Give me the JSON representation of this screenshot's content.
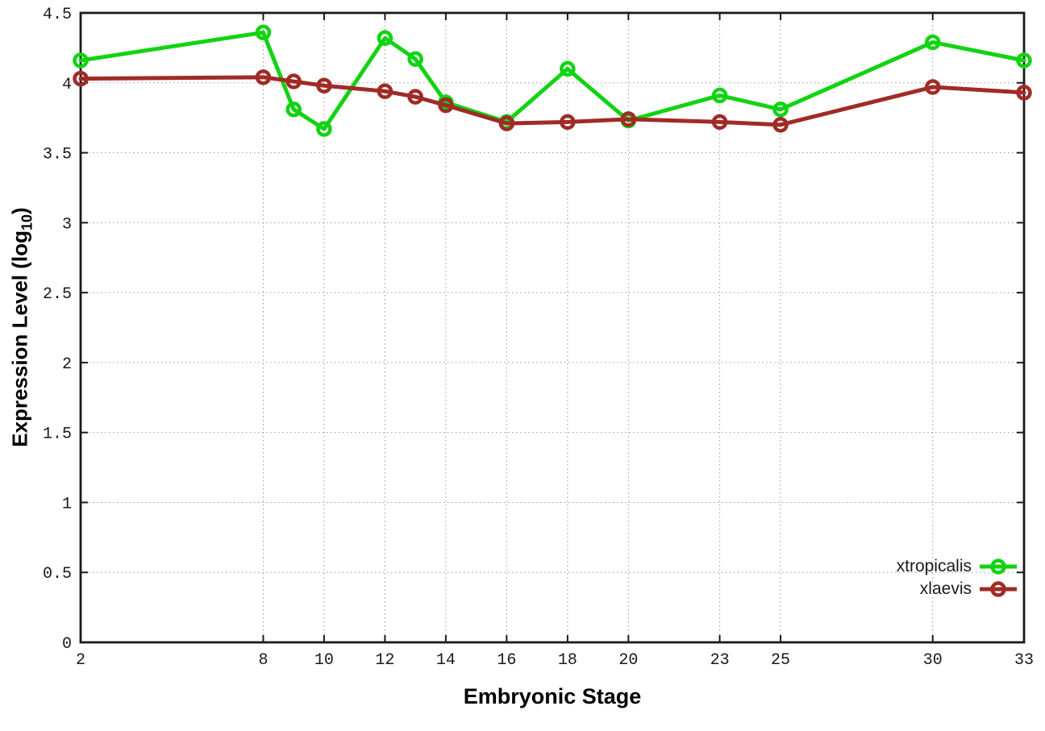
{
  "chart_data": {
    "type": "line",
    "title": "",
    "xlabel": "Embryonic Stage",
    "ylabel": "Expression Level (log10)",
    "ylabel_parts": {
      "main": "Expression Level (log",
      "sub": "10",
      "end": ")"
    },
    "x": [
      2,
      8,
      9,
      10,
      12,
      13,
      14,
      16,
      18,
      20,
      23,
      25,
      30,
      33
    ],
    "xlim": [
      2,
      33
    ],
    "ylim": [
      0,
      4.5
    ],
    "xtick_labels": [
      "2",
      "8",
      "10",
      "12",
      "14",
      "16",
      "18",
      "20",
      "23",
      "25",
      "30",
      "33"
    ],
    "ytick_labels": [
      "0",
      "0.5",
      "1",
      "1.5",
      "2",
      "2.5",
      "3",
      "3.5",
      "4",
      "4.5"
    ],
    "grid": true,
    "legend_position": "inside-bottom-right",
    "series": [
      {
        "name": "xtropicalis",
        "color": "#12d312",
        "values": [
          4.16,
          4.36,
          3.81,
          3.67,
          4.32,
          4.17,
          3.86,
          3.72,
          4.1,
          3.73,
          3.91,
          3.81,
          4.29,
          4.16
        ]
      },
      {
        "name": "xlaevis",
        "color": "#a02b26",
        "values": [
          4.03,
          4.04,
          4.01,
          3.98,
          3.94,
          3.9,
          3.84,
          3.71,
          3.72,
          3.74,
          3.72,
          3.7,
          3.97,
          3.93
        ]
      }
    ],
    "axis_color": "#1a1a1a",
    "grid_color": "#9a9a9a",
    "background": "#ffffff"
  }
}
